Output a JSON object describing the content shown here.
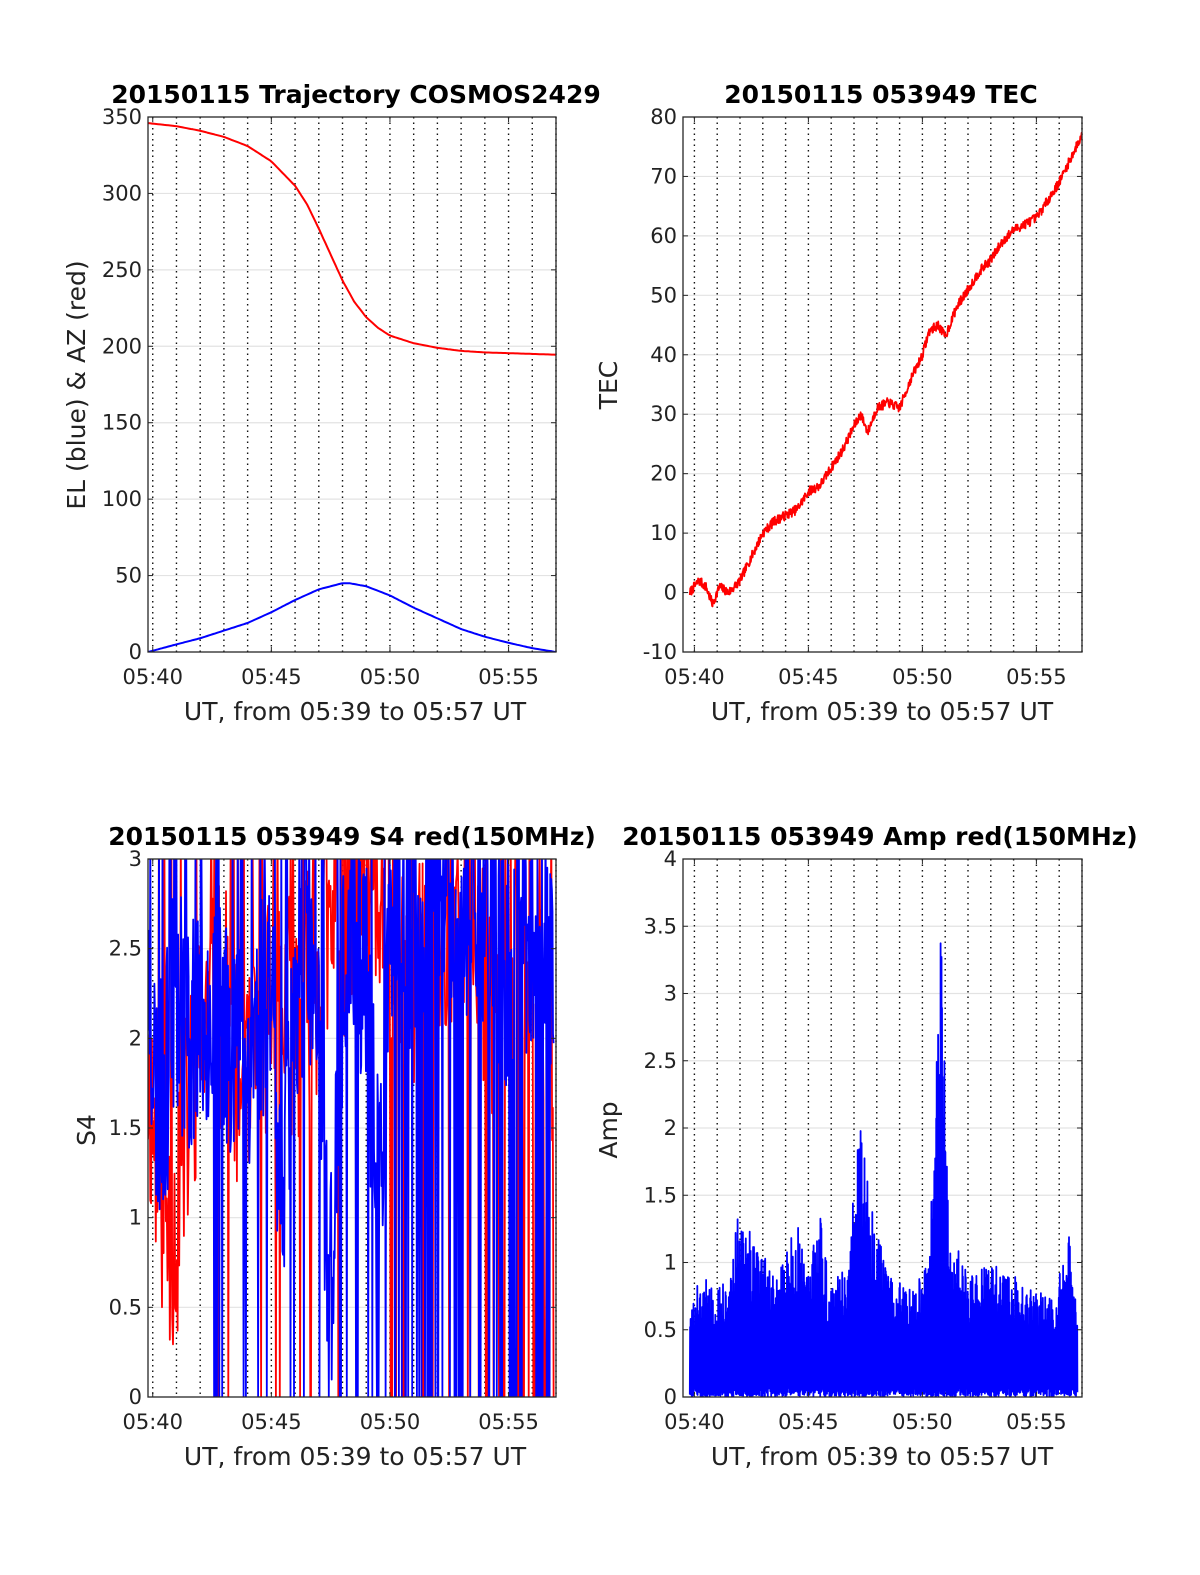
{
  "figure": {
    "panels": [
      {
        "id": "trajectory",
        "title": "20150115 Trajectory COSMOS2429",
        "xlabel": "UT, from 05:39 to 05:57 UT",
        "ylabel": "EL (blue) & AZ (red)"
      },
      {
        "id": "tec",
        "title": "20150115 053949 TEC",
        "xlabel": "UT, from 05:39 to 05:57 UT",
        "ylabel": "TEC"
      },
      {
        "id": "s4",
        "title": "20150115 053949 S4 red(150MHz)",
        "xlabel": "UT, from 05:39 to 05:57 UT",
        "ylabel": "S4"
      },
      {
        "id": "amp",
        "title": "20150115 053949 Amp red(150MHz)",
        "xlabel": "UT, from 05:39 to 05:57 UT",
        "ylabel": "Amp"
      }
    ]
  },
  "chart_data": [
    {
      "type": "line",
      "title": "20150115 Trajectory COSMOS2429",
      "xlabel": "UT, from 05:39 to 05:57 UT",
      "ylabel": "EL (blue) & AZ (red)",
      "xlim_minutes": [
        39.8,
        57.0
      ],
      "x_ticks": [
        "05:40",
        "05:45",
        "05:50",
        "05:55"
      ],
      "ylim": [
        0,
        350
      ],
      "y_ticks": [
        0,
        50,
        100,
        150,
        200,
        250,
        300,
        350
      ],
      "grid": "dotted vertical every minute, light horizontal",
      "series": [
        {
          "color": "#ff0000",
          "x_minutes": [
            39.8,
            41,
            42,
            43,
            44,
            45,
            46,
            46.5,
            47,
            47.5,
            48,
            48.5,
            49,
            49.5,
            50,
            51,
            52,
            53,
            54,
            55,
            56,
            57
          ],
          "values": [
            346,
            344,
            341,
            337,
            331,
            321,
            305,
            293,
            277,
            260,
            243,
            229,
            219,
            212,
            207,
            202,
            199,
            197,
            196,
            195.5,
            195,
            194.5
          ]
        },
        {
          "color": "#0000ff",
          "x_minutes": [
            39.8,
            41,
            42,
            43,
            44,
            45,
            46,
            47,
            48,
            48.3,
            49,
            50,
            51,
            52,
            53,
            54,
            55,
            56,
            57
          ],
          "values": [
            0,
            5,
            9,
            14,
            19,
            26,
            34,
            41,
            45,
            45,
            43,
            37,
            29,
            22,
            15,
            10,
            6,
            2.5,
            0
          ]
        }
      ]
    },
    {
      "type": "line",
      "title": "20150115 053949 TEC",
      "xlabel": "UT, from 05:39 to 05:57 UT",
      "ylabel": "TEC",
      "xlim_minutes": [
        39.5,
        57.0
      ],
      "x_ticks": [
        "05:40",
        "05:45",
        "05:50",
        "05:55"
      ],
      "ylim": [
        -10,
        80
      ],
      "y_ticks": [
        -10,
        0,
        10,
        20,
        30,
        40,
        50,
        60,
        70,
        80
      ],
      "grid": "dotted vertical every minute, light horizontal",
      "series": [
        {
          "color": "#ff0000",
          "x_minutes": [
            39.8,
            40.2,
            40.5,
            40.8,
            41.1,
            41.5,
            42,
            42.5,
            43,
            43.5,
            44,
            44.5,
            45,
            45.5,
            46,
            46.5,
            47,
            47.3,
            47.6,
            48,
            48.5,
            49,
            49.5,
            50,
            50.3,
            50.7,
            51,
            51.5,
            52,
            52.5,
            53,
            53.5,
            54,
            54.5,
            55,
            55.5,
            56,
            56.5,
            57
          ],
          "values": [
            0,
            2,
            1,
            -2,
            1,
            0,
            2,
            6,
            10,
            12,
            13,
            14,
            17,
            18,
            21,
            24,
            28,
            30,
            27,
            31,
            32,
            31,
            36,
            40,
            44,
            45,
            43,
            48,
            51,
            54,
            56,
            59,
            61,
            62,
            63,
            66,
            69,
            73,
            77
          ]
        }
      ]
    },
    {
      "type": "line",
      "title": "20150115 053949 S4 red(150MHz)",
      "xlabel": "UT, from 05:39 to 05:57 UT",
      "ylabel": "S4",
      "xlim_minutes": [
        39.8,
        57.0
      ],
      "x_ticks": [
        "05:40",
        "05:45",
        "05:50",
        "05:55"
      ],
      "ylim": [
        0,
        3
      ],
      "y_ticks": [
        0,
        0.5,
        1,
        1.5,
        2,
        2.5,
        3
      ],
      "grid": "dotted vertical every minute, light horizontal",
      "series": [
        {
          "color": "#ff0000",
          "x_minutes": [
            39.8,
            40.2,
            40.6,
            41.0,
            41.4,
            42.0,
            43.0,
            44.0,
            45.0,
            46.0,
            47.0,
            48.0,
            49.0,
            50.0,
            51.0,
            52.0,
            53.0,
            54.0,
            55.0,
            56.0,
            56.9
          ],
          "values": [
            1.8,
            1.3,
            1.0,
            0.9,
            1.5,
            2.0,
            2.2,
            1.6,
            2.3,
            2.1,
            2.4,
            2.6,
            2.8,
            2.7,
            2.2,
            2.5,
            2.9,
            2.4,
            2.0,
            2.6,
            1.7
          ]
        },
        {
          "color": "#0000ff",
          "x_minutes": [
            39.8,
            40.2,
            40.6,
            41.0,
            41.5,
            42.0,
            43.0,
            44.0,
            45.0,
            45.5,
            46.0,
            46.5,
            47.0,
            47.5,
            48.0,
            48.5,
            49.0,
            49.5,
            50.0,
            50.5,
            51.0,
            52.0,
            53.0,
            54.0,
            55.0,
            56.0,
            56.9
          ],
          "values": [
            2.4,
            1.6,
            1.8,
            2.3,
            2.0,
            2.2,
            2.1,
            1.9,
            2.4,
            0.8,
            2.3,
            2.6,
            1.9,
            0.6,
            2.2,
            2.7,
            2.3,
            1.1,
            2.5,
            2.8,
            2.4,
            2.9,
            2.6,
            2.8,
            2.3,
            2.7,
            2.5
          ]
        }
      ]
    },
    {
      "type": "line",
      "title": "20150115 053949 Amp red(150MHz)",
      "xlabel": "UT, from 05:39 to 05:57 UT",
      "ylabel": "Amp",
      "xlim_minutes": [
        39.5,
        57.0
      ],
      "x_ticks": [
        "05:40",
        "05:45",
        "05:50",
        "05:55"
      ],
      "ylim": [
        0,
        4
      ],
      "y_ticks": [
        0,
        0.5,
        1,
        1.5,
        2,
        2.5,
        3,
        3.5,
        4
      ],
      "grid": "dotted vertical every minute, light horizontal",
      "series": [
        {
          "color": "#0000ff",
          "x_minutes": [
            39.8,
            40.2,
            40.8,
            41.5,
            41.9,
            42.6,
            43.5,
            44.5,
            45.0,
            45.4,
            46.0,
            46.8,
            47.1,
            47.3,
            47.6,
            48.5,
            49.5,
            50.3,
            50.6,
            50.8,
            51.2,
            52.0,
            53.0,
            54.0,
            55.0,
            55.9,
            56.3,
            56.8
          ],
          "values": [
            0.6,
            1.0,
            0.8,
            0.9,
            1.4,
            1.2,
            0.9,
            1.3,
            0.9,
            1.5,
            0.8,
            1.1,
            2.0,
            2.0,
            1.6,
            0.9,
            0.8,
            1.0,
            2.5,
            3.5,
            1.3,
            0.9,
            1.0,
            0.9,
            0.8,
            0.7,
            1.4,
            0.6
          ]
        }
      ]
    }
  ]
}
